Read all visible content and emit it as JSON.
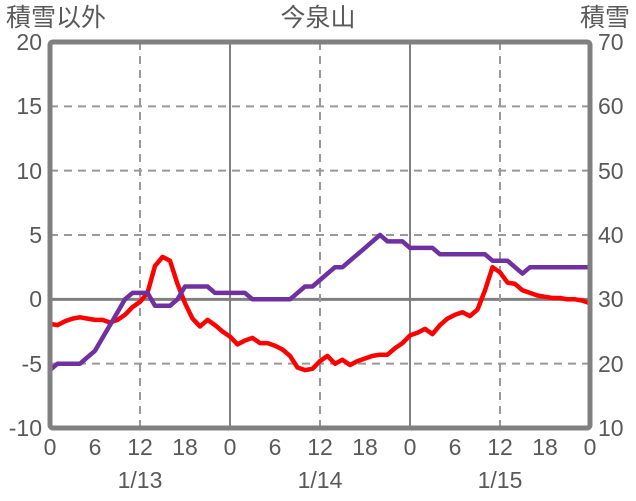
{
  "chart_data": {
    "type": "line",
    "title": "今泉山",
    "left_axis": {
      "label": "積雪以外",
      "min": -10,
      "max": 20,
      "ticks": [
        20,
        15,
        10,
        5,
        0,
        -5,
        -10
      ]
    },
    "right_axis": {
      "label": "積雪",
      "min": 10,
      "max": 70,
      "ticks": [
        70,
        60,
        50,
        40,
        30,
        20,
        10
      ]
    },
    "x_axis": {
      "tick_every_hours": 6,
      "total_hours": 72,
      "tick_labels": [
        "0",
        "6",
        "12",
        "18",
        "0",
        "6",
        "12",
        "18",
        "0",
        "6",
        "12",
        "18",
        "0"
      ],
      "date_labels": [
        "1/13",
        "1/14",
        "1/15"
      ],
      "noon_gridline": "dashed",
      "midnight_gridline": "solid"
    },
    "grid": {
      "horizontal_dashed_at": [
        15,
        10,
        5,
        -5
      ],
      "zero_line_at": 0
    },
    "series": [
      {
        "name": "積雪以外",
        "axis": "left",
        "color": "#ff0000",
        "values": [
          -1.9,
          -2.0,
          -1.7,
          -1.5,
          -1.4,
          -1.5,
          -1.6,
          -1.6,
          -1.8,
          -1.6,
          -1.2,
          -0.6,
          -0.2,
          0.5,
          2.6,
          3.3,
          3.0,
          1.2,
          -0.3,
          -1.5,
          -2.1,
          -1.6,
          -2.0,
          -2.5,
          -2.9,
          -3.5,
          -3.2,
          -3.0,
          -3.4,
          -3.4,
          -3.6,
          -3.9,
          -4.4,
          -5.3,
          -5.5,
          -5.4,
          -4.8,
          -4.4,
          -5.0,
          -4.7,
          -5.1,
          -4.8,
          -4.6,
          -4.4,
          -4.3,
          -4.3,
          -3.8,
          -3.4,
          -2.8,
          -2.6,
          -2.3,
          -2.7,
          -2.0,
          -1.5,
          -1.2,
          -1.0,
          -1.3,
          -0.8,
          0.7,
          2.5,
          2.1,
          1.3,
          1.2,
          0.7,
          0.5,
          0.3,
          0.2,
          0.1,
          0.1,
          0.0,
          0.0,
          -0.1,
          -0.3
        ]
      },
      {
        "name": "積雪",
        "axis": "right",
        "color": "#7030a0",
        "values": [
          19,
          20,
          20,
          20,
          20,
          21,
          22,
          24,
          26,
          28,
          30,
          31,
          31,
          31,
          29,
          29,
          29,
          30,
          32,
          32,
          32,
          32,
          31,
          31,
          31,
          31,
          31,
          30,
          30,
          30,
          30,
          30,
          30,
          31,
          32,
          32,
          33,
          34,
          35,
          35,
          36,
          37,
          38,
          39,
          40,
          39,
          39,
          39,
          38,
          38,
          38,
          38,
          37,
          37,
          37,
          37,
          37,
          37,
          37,
          36,
          36,
          36,
          35,
          34,
          35,
          35,
          35,
          35,
          35,
          35,
          35,
          35,
          35
        ]
      }
    ],
    "colors": {
      "grid_dashed": "#999999",
      "grid_solid": "#808080",
      "border": "#808080",
      "text": "#595959",
      "background": "#ffffff"
    }
  }
}
